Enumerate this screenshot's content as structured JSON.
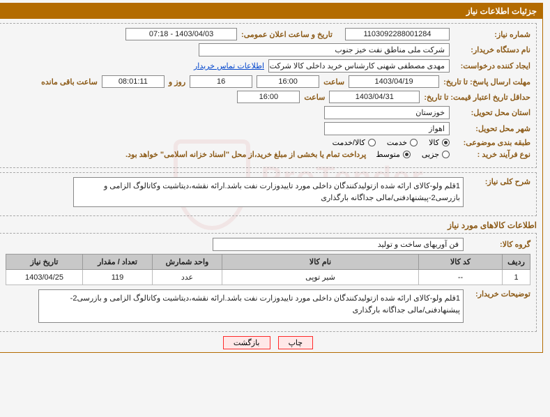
{
  "header": {
    "title": "جزئیات اطلاعات نیاز"
  },
  "labels": {
    "need_number": "شماره نیاز:",
    "announce_dt": "تاریخ و ساعت اعلان عمومی:",
    "buyer_org": "نام دستگاه خریدار:",
    "requester": "ایجاد کننده درخواست:",
    "contact_link": "اطلاعات تماس خریدار",
    "reply_until": "مهلت ارسال پاسخ: تا تاریخ:",
    "time": "ساعت",
    "days_and": "روز و",
    "time_left": "ساعت باقی مانده",
    "valid_until": "حداقل تاریخ اعتبار قیمت: تا تاریخ:",
    "province": "استان محل تحویل:",
    "city": "شهر محل تحویل:",
    "category": "طبقه بندی موضوعی:",
    "buy_type": "نوع فرآیند خرید :",
    "buy_type_note": "پرداخت تمام یا بخشی از مبلغ خرید،از محل \"اسناد خزانه اسلامی\" خواهد بود.",
    "desc_title": "شرح کلی نیاز:",
    "items_title": "اطلاعات کالاهای مورد نیاز",
    "goods_group": "گروه کالا:",
    "buyer_notes": "توضیحات خریدار:"
  },
  "fields": {
    "need_number": "1103092288001284",
    "announce_dt": "1403/04/03 - 07:18",
    "buyer_org": "شرکت ملی مناطق نفت خیز جنوب",
    "requester": "مهدی  مصطفی شهنی کارشناس خرید داخلی کالا  شرکت ملی مناطق نفت خیزجنوب",
    "reply_date": "1403/04/19",
    "reply_time": "16:00",
    "days_left": "16",
    "countdown": "08:01:11",
    "valid_date": "1403/04/31",
    "valid_time": "16:00",
    "province": "خوزستان",
    "city": "اهواز",
    "goods_group": "فن آوریهای ساخت و تولید"
  },
  "radios": {
    "category": [
      {
        "label": "کالا",
        "checked": true
      },
      {
        "label": "خدمت",
        "checked": false
      },
      {
        "label": "کالا/خدمت",
        "checked": false
      }
    ],
    "buy_type": [
      {
        "label": "جزیی",
        "checked": false
      },
      {
        "label": "متوسط",
        "checked": true
      }
    ]
  },
  "description": "1قلم ولو-کالای ارائه شده ازتولیدکنندگان داخلی مورد تاییدوزارت نفت باشد.ارائه نقشه،دیتاشیت وکاتالوگ الزامی و بازرسی2-پیشنهادفنی/مالی جداگانه بارگذاری",
  "buyer_notes": "1قلم ولو-کالای ارائه شده ازتولیدکنندگان داخلی مورد تاییدوزارت نفت باشد.ارائه نقشه،دیتاشیت وکاتالوگ الزامی و بازرسی2-پیشنهادفنی/مالی جداگانه بارگذاری",
  "table": {
    "headers": [
      "ردیف",
      "کد کالا",
      "نام کالا",
      "واحد شمارش",
      "تعداد / مقدار",
      "تاریخ نیاز"
    ],
    "col_widths": [
      "40px",
      "120px",
      "auto",
      "100px",
      "100px",
      "110px"
    ],
    "rows": [
      [
        "1",
        "--",
        "شیر توپی",
        "عدد",
        "119",
        "1403/04/25"
      ]
    ]
  },
  "buttons": {
    "print": "چاپ",
    "back": "بازگشت"
  }
}
